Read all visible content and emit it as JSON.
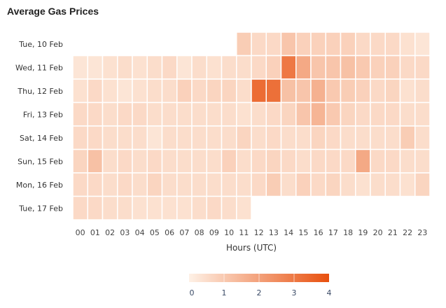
{
  "chart_data": {
    "type": "heatmap",
    "title": "Average Gas Prices",
    "xlabel": "Hours (UTC)",
    "ylabel": "",
    "x": [
      "00",
      "01",
      "02",
      "03",
      "04",
      "05",
      "06",
      "07",
      "08",
      "09",
      "10",
      "11",
      "12",
      "13",
      "14",
      "15",
      "16",
      "17",
      "18",
      "19",
      "20",
      "21",
      "22",
      "23"
    ],
    "y": [
      "Tue, 10 Feb",
      "Wed, 11 Feb",
      "Thu, 12 Feb",
      "Fri, 13 Feb",
      "Sat, 14 Feb",
      "Sun, 15 Feb",
      "Mon, 16 Feb",
      "Tue, 17 Feb"
    ],
    "values": [
      [
        null,
        null,
        null,
        null,
        null,
        null,
        null,
        null,
        null,
        null,
        null,
        0.9,
        0.6,
        0.6,
        1.1,
        0.8,
        0.8,
        0.8,
        0.8,
        0.6,
        0.6,
        0.6,
        0.4,
        0.3
      ],
      [
        0.3,
        0.3,
        0.4,
        0.5,
        0.4,
        0.5,
        0.6,
        0.3,
        0.5,
        0.4,
        0.5,
        0.5,
        0.6,
        0.8,
        3.0,
        1.8,
        1.1,
        1.1,
        1.2,
        1.0,
        0.8,
        0.8,
        0.6,
        0.6
      ],
      [
        0.4,
        0.6,
        0.4,
        0.3,
        0.4,
        0.5,
        0.5,
        0.8,
        0.6,
        0.7,
        0.7,
        0.5,
        3.3,
        3.2,
        1.2,
        1.1,
        1.6,
        1.0,
        0.9,
        0.8,
        0.6,
        0.7,
        0.4,
        0.5
      ],
      [
        0.6,
        0.6,
        0.5,
        0.6,
        0.6,
        0.5,
        0.5,
        0.5,
        0.5,
        0.5,
        0.5,
        0.4,
        0.5,
        0.6,
        0.7,
        1.1,
        1.5,
        1.0,
        0.7,
        0.6,
        0.6,
        0.6,
        0.5,
        0.5
      ],
      [
        0.6,
        0.6,
        0.5,
        0.5,
        0.5,
        0.3,
        0.5,
        0.5,
        0.5,
        0.5,
        0.5,
        0.7,
        0.5,
        0.6,
        0.5,
        0.5,
        0.7,
        0.6,
        0.5,
        0.5,
        0.5,
        0.5,
        0.9,
        0.5
      ],
      [
        0.7,
        1.2,
        0.5,
        0.6,
        0.5,
        0.6,
        0.5,
        0.5,
        0.5,
        0.5,
        0.8,
        0.5,
        0.6,
        0.7,
        0.6,
        0.5,
        0.6,
        0.6,
        0.6,
        1.8,
        0.6,
        0.6,
        0.5,
        0.5
      ],
      [
        0.6,
        0.6,
        0.5,
        0.6,
        0.5,
        0.7,
        0.5,
        0.5,
        0.5,
        0.5,
        0.5,
        0.5,
        0.6,
        0.9,
        0.5,
        0.8,
        0.6,
        0.7,
        0.5,
        0.4,
        0.5,
        0.5,
        0.4,
        0.7
      ],
      [
        0.6,
        0.6,
        0.5,
        0.5,
        0.4,
        0.4,
        0.4,
        0.4,
        0.5,
        0.6,
        0.5,
        0.4,
        null,
        null,
        null,
        null,
        null,
        null,
        null,
        null,
        null,
        null,
        null,
        null
      ]
    ],
    "colorscale": {
      "min": 0,
      "max": 4,
      "low": "#fef1e6",
      "high": "#e8500e",
      "ticks": [
        "0",
        "1",
        "2",
        "3",
        "4"
      ]
    },
    "legend": "bottom-center"
  }
}
